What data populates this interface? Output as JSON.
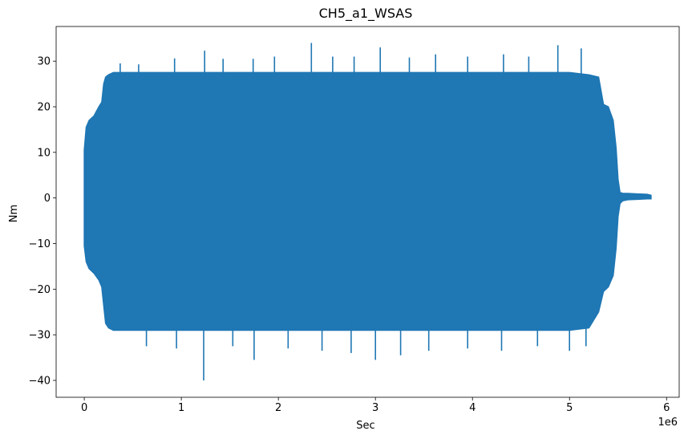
{
  "chart_data": {
    "type": "line",
    "title": "CH5_a1_WSAS",
    "xlabel": "Sec",
    "ylabel": "Nm",
    "x_offset_text": "1e6",
    "xlim": [
      -0.29,
      6.13
    ],
    "ylim": [
      -43.7,
      37.6
    ],
    "x_ticks": [
      0,
      1,
      2,
      3,
      4,
      5,
      6
    ],
    "x_tick_labels": [
      "0",
      "1",
      "2",
      "3",
      "4",
      "5",
      "6"
    ],
    "y_ticks": [
      -40,
      -30,
      -20,
      -10,
      0,
      10,
      20,
      30
    ],
    "y_tick_labels": [
      "−40",
      "−30",
      "−20",
      "−10",
      "0",
      "10",
      "20",
      "30"
    ],
    "grid": false,
    "series": [
      {
        "color": "#1f77b4",
        "envelope": {
          "x": [
            0.0,
            0.02,
            0.05,
            0.1,
            0.15,
            0.18,
            0.2,
            0.22,
            0.25,
            0.3,
            0.5,
            1.0,
            1.5,
            2.0,
            2.5,
            3.0,
            3.5,
            4.0,
            4.5,
            5.0,
            5.2,
            5.3,
            5.35,
            5.4,
            5.45,
            5.48,
            5.5,
            5.52,
            5.55,
            5.6,
            5.7,
            5.8,
            5.84
          ],
          "upper": [
            10.5,
            15.5,
            17.0,
            18.0,
            20.0,
            21.0,
            25.0,
            26.5,
            27.0,
            27.5,
            27.5,
            27.5,
            27.5,
            27.5,
            27.5,
            27.5,
            27.5,
            27.5,
            27.5,
            27.5,
            27.0,
            26.5,
            20.5,
            20.0,
            17.0,
            11.0,
            4.0,
            1.2,
            1.0,
            1.0,
            0.9,
            0.8,
            0.6
          ],
          "lower": [
            -10.5,
            -14.0,
            -15.5,
            -16.5,
            -18.0,
            -19.5,
            -23.5,
            -27.5,
            -28.5,
            -29.0,
            -29.0,
            -29.0,
            -29.0,
            -29.0,
            -29.0,
            -29.0,
            -29.0,
            -29.0,
            -29.0,
            -29.0,
            -28.5,
            -25.0,
            -20.5,
            -19.5,
            -17.0,
            -11.0,
            -4.0,
            -1.2,
            -0.6,
            -0.4,
            -0.3,
            -0.2,
            -0.2
          ]
        },
        "spikes": [
          {
            "x": 0.37,
            "y": 29.5
          },
          {
            "x": 0.56,
            "y": 29.3
          },
          {
            "x": 0.93,
            "y": 30.6
          },
          {
            "x": 1.24,
            "y": 32.3
          },
          {
            "x": 1.43,
            "y": 30.5
          },
          {
            "x": 1.74,
            "y": 30.5
          },
          {
            "x": 1.96,
            "y": 31.0
          },
          {
            "x": 2.34,
            "y": 34.0
          },
          {
            "x": 2.56,
            "y": 31.0
          },
          {
            "x": 2.78,
            "y": 31.0
          },
          {
            "x": 3.05,
            "y": 33.0
          },
          {
            "x": 3.35,
            "y": 30.8
          },
          {
            "x": 3.62,
            "y": 31.5
          },
          {
            "x": 3.95,
            "y": 31.0
          },
          {
            "x": 4.32,
            "y": 31.5
          },
          {
            "x": 4.58,
            "y": 31.0
          },
          {
            "x": 4.88,
            "y": 33.5
          },
          {
            "x": 5.12,
            "y": 32.8
          },
          {
            "x": 1.23,
            "y": -40.0
          },
          {
            "x": 1.75,
            "y": -35.5
          },
          {
            "x": 0.64,
            "y": -32.5
          },
          {
            "x": 0.95,
            "y": -33.0
          },
          {
            "x": 1.53,
            "y": -32.5
          },
          {
            "x": 2.1,
            "y": -33.0
          },
          {
            "x": 2.45,
            "y": -33.5
          },
          {
            "x": 2.75,
            "y": -34.0
          },
          {
            "x": 3.0,
            "y": -35.5
          },
          {
            "x": 3.26,
            "y": -34.5
          },
          {
            "x": 3.55,
            "y": -33.5
          },
          {
            "x": 3.95,
            "y": -33.0
          },
          {
            "x": 4.3,
            "y": -33.5
          },
          {
            "x": 4.67,
            "y": -32.5
          },
          {
            "x": 5.0,
            "y": -33.5
          },
          {
            "x": 5.17,
            "y": -32.5
          }
        ]
      }
    ]
  }
}
